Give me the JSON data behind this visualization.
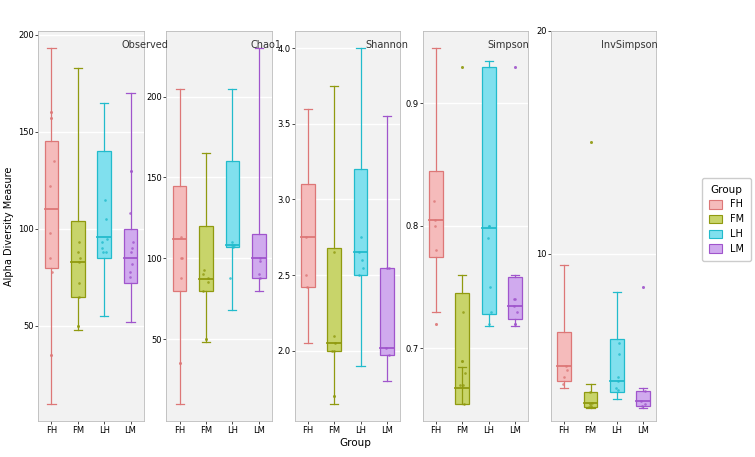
{
  "panels": [
    "Observed",
    "Chao1",
    "Shannon",
    "Simpson",
    "InvSimpson"
  ],
  "groups": [
    "FH",
    "FM",
    "LH",
    "LM"
  ],
  "colors": {
    "FH": "#F5BBBB",
    "FM": "#C8D46A",
    "LH": "#80E0EE",
    "LM": "#D0AAEE"
  },
  "border_colors": {
    "FH": "#DD7777",
    "FM": "#909A10",
    "LH": "#22BBCC",
    "LM": "#A055CC"
  },
  "ylabel": "Alpha Diversity Measure",
  "xlabel": "Group",
  "panel_bg": "#F2F2F2",
  "grid_color": "#FFFFFF",
  "panels_data": {
    "Observed": {
      "FH": {
        "whislo": 10,
        "q1": 80,
        "med": 110,
        "q3": 145,
        "whishi": 193,
        "fliers": [
          35,
          157,
          160
        ]
      },
      "FM": {
        "whislo": 48,
        "q1": 65,
        "med": 83,
        "q3": 104,
        "whishi": 183,
        "fliers": [
          50
        ]
      },
      "LH": {
        "whislo": 55,
        "q1": 85,
        "med": 96,
        "q3": 140,
        "whishi": 165,
        "fliers": []
      },
      "LM": {
        "whislo": 52,
        "q1": 72,
        "med": 85,
        "q3": 100,
        "whishi": 170,
        "fliers": [
          130
        ]
      }
    },
    "Chao1": {
      "FH": {
        "whislo": 10,
        "q1": 80,
        "med": 112,
        "q3": 145,
        "whishi": 205,
        "fliers": [
          35
        ]
      },
      "FM": {
        "whislo": 48,
        "q1": 80,
        "med": 87,
        "q3": 120,
        "whishi": 165,
        "fliers": [
          50
        ]
      },
      "LH": {
        "whislo": 68,
        "q1": 107,
        "med": 108,
        "q3": 160,
        "whishi": 205,
        "fliers": []
      },
      "LM": {
        "whislo": 80,
        "q1": 88,
        "med": 100,
        "q3": 115,
        "whishi": 230,
        "fliers": []
      }
    },
    "Shannon": {
      "FH": {
        "whislo": 2.05,
        "q1": 2.42,
        "med": 2.75,
        "q3": 3.1,
        "whishi": 3.6,
        "fliers": []
      },
      "FM": {
        "whislo": 1.65,
        "q1": 2.0,
        "med": 2.05,
        "q3": 2.68,
        "whishi": 3.75,
        "fliers": [
          1.7
        ]
      },
      "LH": {
        "whislo": 1.9,
        "q1": 2.5,
        "med": 2.65,
        "q3": 3.2,
        "whishi": 4.0,
        "fliers": []
      },
      "LM": {
        "whislo": 1.8,
        "q1": 1.97,
        "med": 2.02,
        "q3": 2.55,
        "whishi": 3.55,
        "fliers": []
      }
    },
    "Simpson": {
      "FH": {
        "whislo": 0.73,
        "q1": 0.775,
        "med": 0.805,
        "q3": 0.845,
        "whishi": 0.945,
        "fliers": [
          0.72
        ]
      },
      "FM": {
        "whislo": 0.685,
        "q1": 0.655,
        "med": 0.668,
        "q3": 0.745,
        "whishi": 0.76,
        "fliers": [
          0.69,
          0.93
        ]
      },
      "LH": {
        "whislo": 0.718,
        "q1": 0.728,
        "med": 0.798,
        "q3": 0.93,
        "whishi": 0.935,
        "fliers": []
      },
      "LM": {
        "whislo": 0.718,
        "q1": 0.724,
        "med": 0.735,
        "q3": 0.758,
        "whishi": 0.76,
        "fliers": [
          0.72,
          0.93
        ]
      }
    },
    "InvSimpson": {
      "FH": {
        "whislo": 4.0,
        "q1": 4.3,
        "med": 5.0,
        "q3": 6.5,
        "whishi": 9.5,
        "fliers": []
      },
      "FM": {
        "whislo": 3.1,
        "q1": 3.15,
        "med": 3.35,
        "q3": 3.8,
        "whishi": 4.2,
        "fliers": [
          15.0
        ]
      },
      "LH": {
        "whislo": 3.5,
        "q1": 3.8,
        "med": 4.3,
        "q3": 6.2,
        "whishi": 8.3,
        "fliers": []
      },
      "LM": {
        "whislo": 3.1,
        "q1": 3.2,
        "med": 3.4,
        "q3": 3.85,
        "whishi": 4.0,
        "fliers": [
          8.5
        ]
      }
    }
  },
  "scatter_data": {
    "Observed": {
      "FH": [
        135,
        122,
        98,
        85,
        78
      ],
      "FM": [
        88,
        85,
        83,
        72,
        65,
        93
      ],
      "LH": [
        95,
        93,
        90,
        88,
        115,
        105,
        88
      ],
      "LM": [
        93,
        90,
        88,
        82,
        78,
        75,
        108
      ]
    },
    "Chao1": {
      "FH": [
        113,
        100,
        88,
        100
      ],
      "FM": [
        93,
        90,
        88,
        85,
        80
      ],
      "LH": [
        110,
        108,
        107,
        88,
        108
      ],
      "LM": [
        100,
        98,
        90,
        88
      ]
    },
    "Shannon": {
      "FH": [
        2.75,
        2.5,
        2.42
      ],
      "FM": [
        2.65,
        2.1,
        2.05,
        2.0,
        2.0
      ],
      "LH": [
        2.65,
        2.6,
        2.55,
        2.75,
        2.5
      ],
      "LM": [
        2.55,
        2.02,
        1.97,
        2.55
      ]
    },
    "Simpson": {
      "FH": [
        0.805,
        0.8,
        0.78,
        0.82
      ],
      "FM": [
        0.67,
        0.67,
        0.655,
        0.73,
        0.68
      ],
      "LH": [
        0.8,
        0.73,
        0.72,
        0.79,
        0.75,
        0.8
      ],
      "LM": [
        0.735,
        0.74,
        0.73,
        0.74
      ]
    },
    "InvSimpson": {
      "FH": [
        5.0,
        4.8,
        4.5,
        4.2
      ],
      "FM": [
        3.35,
        3.3,
        3.2,
        3.15,
        3.8
      ],
      "LH": [
        4.3,
        4.0,
        3.9,
        4.5,
        5.5,
        6.0
      ],
      "LM": [
        3.4,
        3.3,
        3.2,
        3.85
      ]
    }
  },
  "yticks": {
    "Observed": [
      50,
      100,
      150,
      200
    ],
    "Chao1": [
      50,
      100,
      150,
      200
    ],
    "Shannon": [
      2.0,
      2.5,
      3.0,
      3.5,
      4.0
    ],
    "Simpson": [
      0.7,
      0.8,
      0.9
    ],
    "InvSimpson": [
      10,
      20
    ]
  },
  "ylims": {
    "Observed": [
      null,
      null
    ],
    "Chao1": [
      null,
      null
    ],
    "Shannon": [
      null,
      null
    ],
    "Simpson": [
      null,
      null
    ],
    "InvSimpson": [
      null,
      null
    ]
  }
}
